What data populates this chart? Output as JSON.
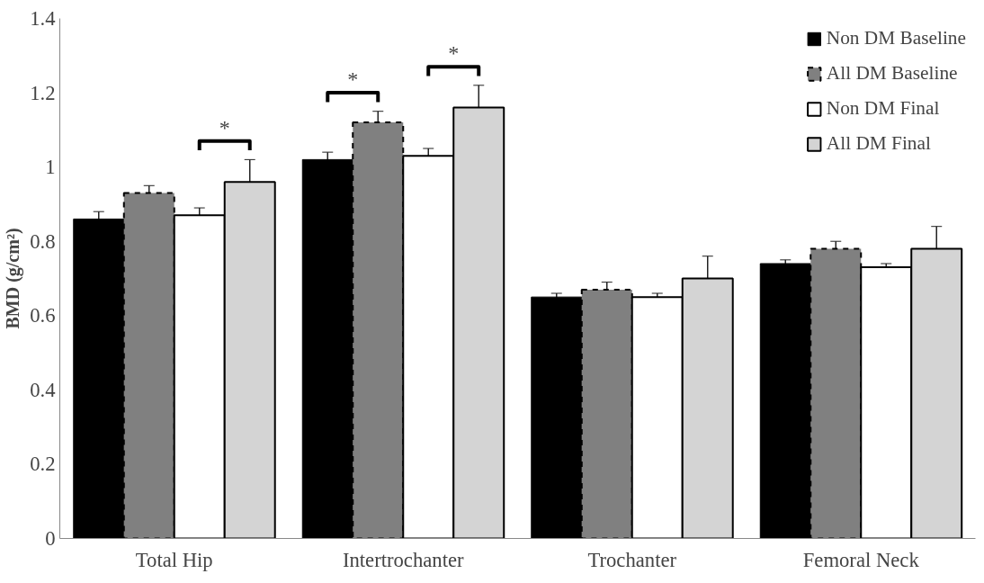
{
  "chart_data": {
    "type": "bar",
    "ylabel": "BMD (g/cm²)",
    "categories": [
      "Total Hip",
      "Intertrochanter",
      "Trochanter",
      "Femoral Neck"
    ],
    "series": [
      {
        "name": "Non DM Baseline",
        "color": "#000000",
        "values": [
          0.86,
          1.02,
          0.65,
          0.74
        ],
        "errors": [
          0.02,
          0.02,
          0.01,
          0.01
        ]
      },
      {
        "name": "All DM Baseline",
        "color": "#808080",
        "values": [
          0.93,
          1.12,
          0.67,
          0.78
        ],
        "errors": [
          0.02,
          0.03,
          0.02,
          0.02
        ]
      },
      {
        "name": "Non DM Final",
        "color": "#ffffff",
        "values": [
          0.87,
          1.03,
          0.65,
          0.73
        ],
        "errors": [
          0.02,
          0.02,
          0.01,
          0.01
        ]
      },
      {
        "name": "All DM Final",
        "color": "#d4d4d4",
        "values": [
          0.96,
          1.16,
          0.7,
          0.78
        ],
        "errors": [
          0.06,
          0.06,
          0.06,
          0.06
        ]
      }
    ],
    "ylim": [
      0,
      1.4
    ],
    "yticks": [
      0,
      0.2,
      0.4,
      0.6,
      0.8,
      1,
      1.2,
      1.4
    ],
    "annotations": [
      "*",
      "*",
      "*"
    ],
    "grid": false,
    "legend": "top right"
  }
}
